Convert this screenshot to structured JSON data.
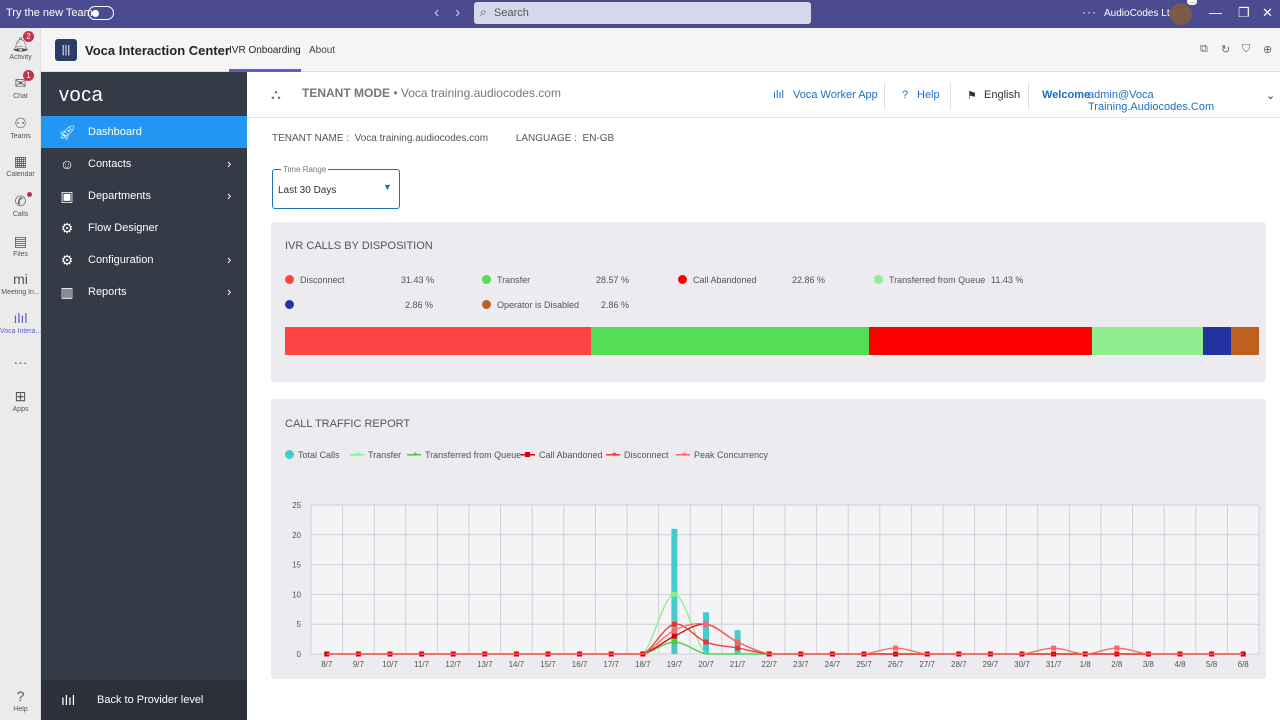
{
  "titlebar": {
    "try_label": "Try the new Teams",
    "search_placeholder": "Search",
    "org": "AudioCodes Ltd",
    "avatar_badge": "..."
  },
  "rail": [
    {
      "label": "Activity",
      "icon": "bell-icon",
      "badge": "2"
    },
    {
      "label": "Chat",
      "icon": "chat-icon",
      "badge": "1"
    },
    {
      "label": "Teams",
      "icon": "teams-icon"
    },
    {
      "label": "Calendar",
      "icon": "calendar-icon"
    },
    {
      "label": "Calls",
      "icon": "phone-icon",
      "dot": true
    },
    {
      "label": "Files",
      "icon": "file-icon"
    },
    {
      "label": "Meeting In...",
      "icon": "meeting-icon"
    },
    {
      "label": "Voca Intera...",
      "icon": "voca-icon",
      "active": true
    },
    {
      "label": "",
      "icon": "more-icon"
    },
    {
      "label": "Apps",
      "icon": "apps-icon"
    },
    {
      "label": "Help",
      "icon": "help-icon"
    }
  ],
  "app": {
    "title": "Voca Interaction Center",
    "tabs": [
      "IVR Onboarding",
      "About"
    ]
  },
  "sidebar": {
    "brand": "voca",
    "items": [
      {
        "label": "Dashboard",
        "active": true
      },
      {
        "label": "Contacts",
        "chevron": true
      },
      {
        "label": "Departments",
        "chevron": true
      },
      {
        "label": "Flow Designer"
      },
      {
        "label": "Configuration",
        "chevron": true
      },
      {
        "label": "Reports",
        "chevron": true
      }
    ],
    "back": "Back to Provider level"
  },
  "topbar": {
    "mode": "TENANT MODE",
    "tenant": "Voca training.audiocodes.com",
    "worker_app": "Voca Worker App",
    "help": "Help",
    "language": "English",
    "welcome": "Welcome",
    "user": "admin@Voca Training.Audiocodes.Com"
  },
  "info": {
    "tenant_name_label": "TENANT NAME :",
    "tenant_name": "Voca training.audiocodes.com",
    "language_label": "LANGUAGE :",
    "language": "EN-GB"
  },
  "time_range": {
    "label": "Time Range",
    "value": "Last 30 Days"
  },
  "disposition": {
    "title": "IVR CALLS BY DISPOSITION",
    "items": [
      {
        "name": "Disconnect",
        "pct": "31.43 %",
        "value": 31.43,
        "color": "#ff4444"
      },
      {
        "name": "Transfer",
        "pct": "28.57 %",
        "value": 28.57,
        "color": "#55dd55"
      },
      {
        "name": "Call Abandoned",
        "pct": "22.86 %",
        "value": 22.86,
        "color": "#ff0000"
      },
      {
        "name": "Transferred from Queue",
        "pct": "11.43 %",
        "value": 11.43,
        "color": "#90ee90"
      },
      {
        "name": "",
        "pct": "2.86 %",
        "value": 2.86,
        "color": "#22339f"
      },
      {
        "name": "Operator is Disabled",
        "pct": "2.86 %",
        "value": 2.86,
        "color": "#c06020"
      }
    ]
  },
  "traffic": {
    "title": "CALL TRAFFIC REPORT",
    "legend": [
      {
        "name": "Total Calls",
        "color": "#44cccc",
        "marker": "dot"
      },
      {
        "name": "Transfer",
        "color": "#88ee88",
        "marker": "line"
      },
      {
        "name": "Transferred from Queue",
        "color": "#44cc44",
        "marker": "line"
      },
      {
        "name": "Call Abandoned",
        "color": "#dd0000",
        "marker": "square"
      },
      {
        "name": "Disconnect",
        "color": "#ee3333",
        "marker": "line"
      },
      {
        "name": "Peak Concurrency",
        "color": "#ff6666",
        "marker": "line"
      }
    ]
  },
  "chart_data": {
    "type": "bar",
    "title": "CALL TRAFFIC REPORT",
    "categories": [
      "8/7",
      "9/7",
      "10/7",
      "11/7",
      "12/7",
      "13/7",
      "14/7",
      "15/7",
      "16/7",
      "17/7",
      "18/7",
      "19/7",
      "20/7",
      "21/7",
      "22/7",
      "23/7",
      "24/7",
      "25/7",
      "26/7",
      "27/7",
      "28/7",
      "29/7",
      "30/7",
      "31/7",
      "1/8",
      "2/8",
      "3/8",
      "4/8",
      "5/8",
      "6/8"
    ],
    "ylim": [
      0,
      25
    ],
    "yticks": [
      0,
      5,
      10,
      15,
      20,
      25
    ],
    "grid": true,
    "series": [
      {
        "name": "Total Calls",
        "type": "bar",
        "values": [
          0,
          0,
          0,
          0,
          0,
          0,
          0,
          0,
          0,
          0,
          0,
          21,
          7,
          4,
          0,
          0,
          0,
          0,
          0,
          0,
          0,
          0,
          0,
          0,
          0,
          0,
          0,
          0,
          0,
          0
        ]
      },
      {
        "name": "Transfer",
        "type": "line",
        "values": [
          0,
          0,
          0,
          0,
          0,
          0,
          0,
          0,
          0,
          0,
          0,
          10,
          0,
          0,
          0,
          0,
          0,
          0,
          0,
          0,
          0,
          0,
          0,
          0,
          0,
          0,
          0,
          0,
          0,
          0
        ]
      },
      {
        "name": "Transferred from Queue",
        "type": "line",
        "values": [
          0,
          0,
          0,
          0,
          0,
          0,
          0,
          0,
          0,
          0,
          0,
          2,
          0,
          0,
          0,
          0,
          0,
          0,
          0,
          0,
          0,
          0,
          0,
          0,
          0,
          0,
          0,
          0,
          0,
          0
        ]
      },
      {
        "name": "Call Abandoned",
        "type": "line",
        "values": [
          0,
          0,
          0,
          0,
          0,
          0,
          0,
          0,
          0,
          0,
          0,
          3,
          5,
          2,
          0,
          0,
          0,
          0,
          0,
          0,
          0,
          0,
          0,
          0,
          0,
          0,
          0,
          0,
          0,
          0
        ]
      },
      {
        "name": "Disconnect",
        "type": "line",
        "values": [
          0,
          0,
          0,
          0,
          0,
          0,
          0,
          0,
          0,
          0,
          0,
          5,
          2,
          1,
          0,
          0,
          0,
          0,
          0,
          0,
          0,
          0,
          0,
          0,
          0,
          0,
          0,
          0,
          0,
          0
        ]
      },
      {
        "name": "Peak Concurrency",
        "type": "line",
        "values": [
          0,
          0,
          0,
          0,
          0,
          0,
          0,
          0,
          0,
          0,
          0,
          4,
          5,
          2,
          0,
          0,
          0,
          0,
          1,
          0,
          0,
          0,
          0,
          1,
          0,
          1,
          0,
          0,
          0,
          0
        ]
      }
    ]
  }
}
